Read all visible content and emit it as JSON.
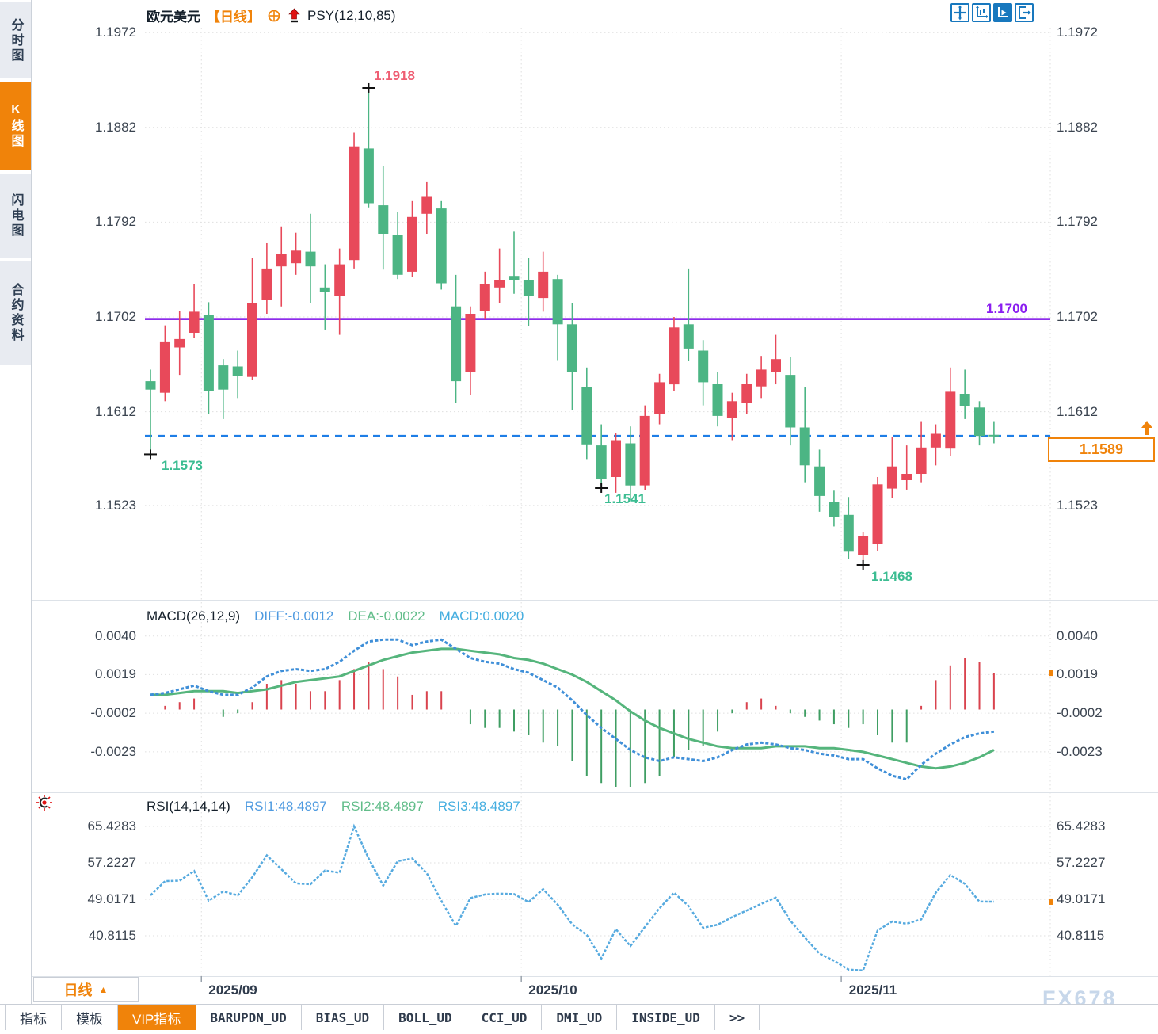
{
  "window": {
    "watermark": "FX678"
  },
  "sidebar": {
    "items": [
      "分时图",
      "K线图",
      "闪电图",
      "合约资料"
    ],
    "active_index": 1
  },
  "header": {
    "symbol": "欧元美元",
    "period": "【日线】",
    "overlay_indicator": "PSY(12,10,85)"
  },
  "toolbar": {
    "icons": [
      "crosshair-move",
      "axis-scale",
      "axis-play",
      "pane-exit"
    ],
    "active_index": 2
  },
  "macd_header": {
    "title": "MACD(26,12,9)",
    "diff": "DIFF:-0.0012",
    "dea": "DEA:-0.0022",
    "macd": "MACD:0.0020"
  },
  "rsi_header": {
    "title": "RSI(14,14,14)",
    "rsi1": "RSI1:48.4897",
    "rsi2": "RSI2:48.4897",
    "rsi3": "RSI3:48.4897"
  },
  "annotations": {
    "swing_high": "1.1918",
    "swing_low_aug": "1.1573",
    "swing_low_oct": "1.1541",
    "swing_low_nov": "1.1468",
    "horizontal_line_label": "1.1700",
    "last_price": "1.1589"
  },
  "x_axis": {
    "labels": [
      "2025/09",
      "2025/10",
      "2025/11"
    ]
  },
  "period_button": {
    "label": "日线",
    "arrow": "▲"
  },
  "bottom_tabs": {
    "items": [
      "指标",
      "模板",
      "VIP指标",
      "BARUPDN_UD",
      "BIAS_UD",
      "BOLL_UD",
      "CCI_UD",
      "DMI_UD",
      "INSIDE_UD",
      ">>"
    ],
    "active_index": 2
  },
  "colors": {
    "accent_orange": "#f0830a",
    "candle_up_red": "#e8495a",
    "candle_down_green": "#4cb584",
    "macd_diff_line": "#3f8fd8",
    "macd_dea_line": "#55b57c",
    "hist_positive": "#d9434e",
    "hist_negative": "#3f9e63",
    "rsi_line": "#56aadf",
    "horizontal_line_purple": "#7d0ee8",
    "last_price_dashed_blue": "#1e7ee6",
    "label_high_red": "#ef5e73",
    "label_low_green": "#3cbd92",
    "toolbar_blue": "#1878be"
  },
  "chart_data": [
    {
      "type": "candlestick",
      "pane": "price",
      "title": "欧元美元 日线",
      "convention": "red=up, green=down",
      "y_ticks": [
        "1.1972",
        "1.1882",
        "1.1792",
        "1.1702",
        "1.1612",
        "1.1523"
      ],
      "horizontal_line": 1.17,
      "last_price": 1.1589,
      "markers": [
        {
          "index": 0,
          "price": 1.1573,
          "pos": "low"
        },
        {
          "index": 15,
          "price": 1.1918,
          "pos": "high"
        },
        {
          "index": 31,
          "price": 1.1541,
          "pos": "low"
        },
        {
          "index": 49,
          "price": 1.1468,
          "pos": "low"
        }
      ],
      "candles": [
        [
          1.1641,
          1.1652,
          1.1573,
          1.1633
        ],
        [
          1.163,
          1.1694,
          1.1622,
          1.1678
        ],
        [
          1.1673,
          1.1708,
          1.1647,
          1.1681
        ],
        [
          1.1687,
          1.1733,
          1.1682,
          1.1707
        ],
        [
          1.1704,
          1.1716,
          1.161,
          1.1632
        ],
        [
          1.1656,
          1.1662,
          1.1605,
          1.1633
        ],
        [
          1.1655,
          1.167,
          1.1625,
          1.1646
        ],
        [
          1.1645,
          1.1758,
          1.1642,
          1.1715
        ],
        [
          1.1718,
          1.1772,
          1.1705,
          1.1748
        ],
        [
          1.175,
          1.1788,
          1.1712,
          1.1762
        ],
        [
          1.1753,
          1.1782,
          1.1742,
          1.1765
        ],
        [
          1.1764,
          1.18,
          1.1715,
          1.175
        ],
        [
          1.173,
          1.1752,
          1.169,
          1.1726
        ],
        [
          1.1722,
          1.1767,
          1.1685,
          1.1752
        ],
        [
          1.1756,
          1.1877,
          1.1748,
          1.1864
        ],
        [
          1.1862,
          1.1918,
          1.1806,
          1.181
        ],
        [
          1.1808,
          1.1845,
          1.1747,
          1.1781
        ],
        [
          1.178,
          1.1802,
          1.1738,
          1.1742
        ],
        [
          1.1745,
          1.1812,
          1.174,
          1.1797
        ],
        [
          1.18,
          1.183,
          1.1781,
          1.1816
        ],
        [
          1.1805,
          1.1812,
          1.1728,
          1.1734
        ],
        [
          1.1712,
          1.1742,
          1.162,
          1.1641
        ],
        [
          1.165,
          1.1712,
          1.1628,
          1.1705
        ],
        [
          1.1708,
          1.1745,
          1.17,
          1.1733
        ],
        [
          1.173,
          1.1767,
          1.1715,
          1.1737
        ],
        [
          1.1741,
          1.1783,
          1.1724,
          1.1737
        ],
        [
          1.1737,
          1.1758,
          1.1693,
          1.1722
        ],
        [
          1.172,
          1.1764,
          1.1707,
          1.1745
        ],
        [
          1.1738,
          1.1742,
          1.1661,
          1.1695
        ],
        [
          1.1695,
          1.1715,
          1.1614,
          1.165
        ],
        [
          1.1635,
          1.1654,
          1.1567,
          1.1581
        ],
        [
          1.158,
          1.16,
          1.1541,
          1.1548
        ],
        [
          1.155,
          1.1592,
          1.1535,
          1.1585
        ],
        [
          1.1582,
          1.1598,
          1.1528,
          1.1542
        ],
        [
          1.1542,
          1.1618,
          1.1538,
          1.1608
        ],
        [
          1.161,
          1.1648,
          1.16,
          1.164
        ],
        [
          1.1638,
          1.1702,
          1.1632,
          1.1692
        ],
        [
          1.1695,
          1.1748,
          1.166,
          1.1672
        ],
        [
          1.167,
          1.168,
          1.1618,
          1.164
        ],
        [
          1.1638,
          1.165,
          1.1598,
          1.1608
        ],
        [
          1.1606,
          1.163,
          1.1585,
          1.1622
        ],
        [
          1.162,
          1.1648,
          1.161,
          1.1638
        ],
        [
          1.1636,
          1.1665,
          1.1625,
          1.1652
        ],
        [
          1.165,
          1.1685,
          1.1638,
          1.1662
        ],
        [
          1.1647,
          1.1664,
          1.158,
          1.1597
        ],
        [
          1.1597,
          1.1635,
          1.1545,
          1.1561
        ],
        [
          1.156,
          1.1576,
          1.1517,
          1.1532
        ],
        [
          1.1526,
          1.1537,
          1.1503,
          1.1512
        ],
        [
          1.1514,
          1.1531,
          1.1472,
          1.1479
        ],
        [
          1.1476,
          1.1498,
          1.1468,
          1.1494
        ],
        [
          1.1486,
          1.155,
          1.148,
          1.1543
        ],
        [
          1.1539,
          1.1588,
          1.153,
          1.156
        ],
        [
          1.1547,
          1.158,
          1.1538,
          1.1553
        ],
        [
          1.1553,
          1.1603,
          1.1545,
          1.1578
        ],
        [
          1.1578,
          1.16,
          1.1561,
          1.1591
        ],
        [
          1.1577,
          1.1654,
          1.157,
          1.1631
        ],
        [
          1.1629,
          1.1652,
          1.1605,
          1.1617
        ],
        [
          1.1616,
          1.1622,
          1.158,
          1.1589
        ],
        [
          1.159,
          1.1603,
          1.1582,
          1.1589
        ]
      ]
    },
    {
      "type": "bar",
      "pane": "macd",
      "title": "MACD(26,12,9)",
      "y_ticks": [
        "0.0040",
        "0.0019",
        "-0.0002",
        "-0.0023"
      ],
      "hist_formula": "2*(diff-dea)",
      "diff": [
        0.0008,
        0.0009,
        0.0011,
        0.0013,
        0.001,
        0.0008,
        0.0008,
        0.0012,
        0.0018,
        0.0021,
        0.0022,
        0.0021,
        0.0022,
        0.0026,
        0.0032,
        0.0037,
        0.0038,
        0.0038,
        0.0035,
        0.0037,
        0.0038,
        0.0033,
        0.0028,
        0.0026,
        0.0025,
        0.0022,
        0.002,
        0.0016,
        0.0012,
        0.0005,
        -0.0003,
        -0.001,
        -0.0016,
        -0.0022,
        -0.0026,
        -0.0028,
        -0.0026,
        -0.0027,
        -0.0028,
        -0.0026,
        -0.0022,
        -0.0019,
        -0.0018,
        -0.0019,
        -0.0021,
        -0.0022,
        -0.0024,
        -0.0025,
        -0.0027,
        -0.0027,
        -0.0032,
        -0.0036,
        -0.0038,
        -0.003,
        -0.0024,
        -0.0019,
        -0.0015,
        -0.0013,
        -0.0012
      ],
      "dea": [
        0.0008,
        0.0008,
        0.0009,
        0.001,
        0.001,
        0.001,
        0.0009,
        0.001,
        0.0011,
        0.0013,
        0.0015,
        0.0016,
        0.0017,
        0.0018,
        0.0021,
        0.0024,
        0.0027,
        0.0029,
        0.0031,
        0.0032,
        0.0033,
        0.0033,
        0.0032,
        0.0031,
        0.003,
        0.0028,
        0.0027,
        0.0025,
        0.0022,
        0.0019,
        0.0015,
        0.001,
        0.0005,
        -0.0001,
        -0.0006,
        -0.001,
        -0.0013,
        -0.0016,
        -0.0018,
        -0.002,
        -0.0021,
        -0.0021,
        -0.0021,
        -0.002,
        -0.002,
        -0.002,
        -0.0021,
        -0.0021,
        -0.0022,
        -0.0023,
        -0.0025,
        -0.0027,
        -0.0029,
        -0.0031,
        -0.0032,
        -0.0031,
        -0.0029,
        -0.0026,
        -0.0022
      ]
    },
    {
      "type": "line",
      "pane": "rsi",
      "title": "RSI(14,14,14)",
      "y_ticks": [
        "65.4283",
        "57.2227",
        "49.0171",
        "40.8115"
      ],
      "values": [
        49.9,
        53.1,
        53.2,
        55.4,
        48.7,
        50.8,
        49.9,
        54.0,
        58.9,
        55.8,
        52.6,
        52.4,
        55.5,
        55.0,
        65.4283,
        58.2,
        52.1,
        57.6,
        58.2,
        54.9,
        48.7,
        43.0,
        49.3,
        50.1,
        50.3,
        50.2,
        48.4,
        51.3,
        47.8,
        43.4,
        41.0,
        35.7,
        42.3,
        38.5,
        42.8,
        47.0,
        50.5,
        47.5,
        42.6,
        43.3,
        45.0,
        46.5,
        48.0,
        49.4,
        44.2,
        40.4,
        36.8,
        35.2,
        33.2,
        33.0,
        42.0,
        44.0,
        43.5,
        44.5,
        50.5,
        54.5,
        52.5,
        48.5,
        48.4897
      ]
    }
  ],
  "month_boundaries": [
    3.5,
    25.5,
    47.5
  ]
}
